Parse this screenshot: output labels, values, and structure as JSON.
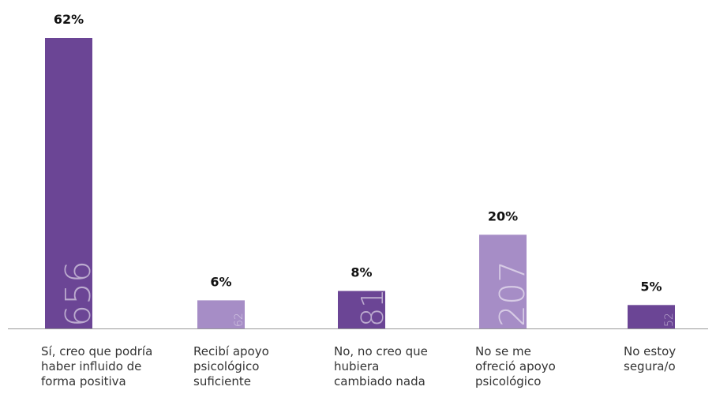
{
  "chart_data": {
    "type": "bar",
    "categories": [
      "Sí, creo que podría haber influido de forma positiva",
      "Recibí apoyo psicológico suficiente",
      "No, no creo que hubiera cambiado nada",
      "No se me ofreció apoyo psicológico",
      "No estoy segura/o"
    ],
    "values": [
      62,
      6,
      8,
      20,
      5
    ],
    "value_labels": [
      "62%",
      "6%",
      "8%",
      "20%",
      "5%"
    ],
    "counts": [
      656,
      62,
      81,
      207,
      52
    ],
    "colors": [
      "#6b4595",
      "#a68dc6",
      "#6b4595",
      "#a68dc6",
      "#6b4595"
    ]
  }
}
